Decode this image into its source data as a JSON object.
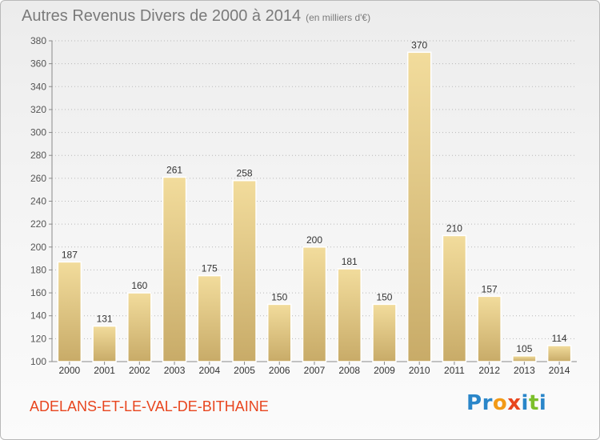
{
  "title": "Autres Revenus Divers de 2000 à 2014",
  "unit": "(en milliers d'€)",
  "commune": "ADELANS-ET-LE-VAL-DE-BITHAINE",
  "logo": {
    "text": "Proxiti",
    "letters": [
      "P",
      "r",
      "o",
      "x",
      "i",
      "t",
      "i"
    ],
    "colors": [
      "#2a86c9",
      "#2a86c9",
      "#f29a16",
      "#e8451e",
      "#2a86c9",
      "#7bbf2a",
      "#2a86c9"
    ]
  },
  "colors": {
    "bar_light": "#f2dc9c",
    "bar_dark": "#c8ab68",
    "axis": "#8a8a8a",
    "grid": "#b8b8b8",
    "commune": "#e8451e"
  },
  "chart_data": {
    "type": "bar",
    "categories": [
      "2000",
      "2001",
      "2002",
      "2003",
      "2004",
      "2005",
      "2006",
      "2007",
      "2008",
      "2009",
      "2010",
      "2011",
      "2012",
      "2013",
      "2014"
    ],
    "values": [
      187,
      131,
      160,
      261,
      175,
      258,
      150,
      200,
      181,
      150,
      370,
      210,
      157,
      105,
      114
    ],
    "ylim": [
      100,
      380
    ],
    "yticks": [
      100,
      120,
      140,
      160,
      180,
      200,
      220,
      240,
      260,
      280,
      300,
      320,
      340,
      360,
      380
    ],
    "grid": true,
    "data_labels": true
  }
}
